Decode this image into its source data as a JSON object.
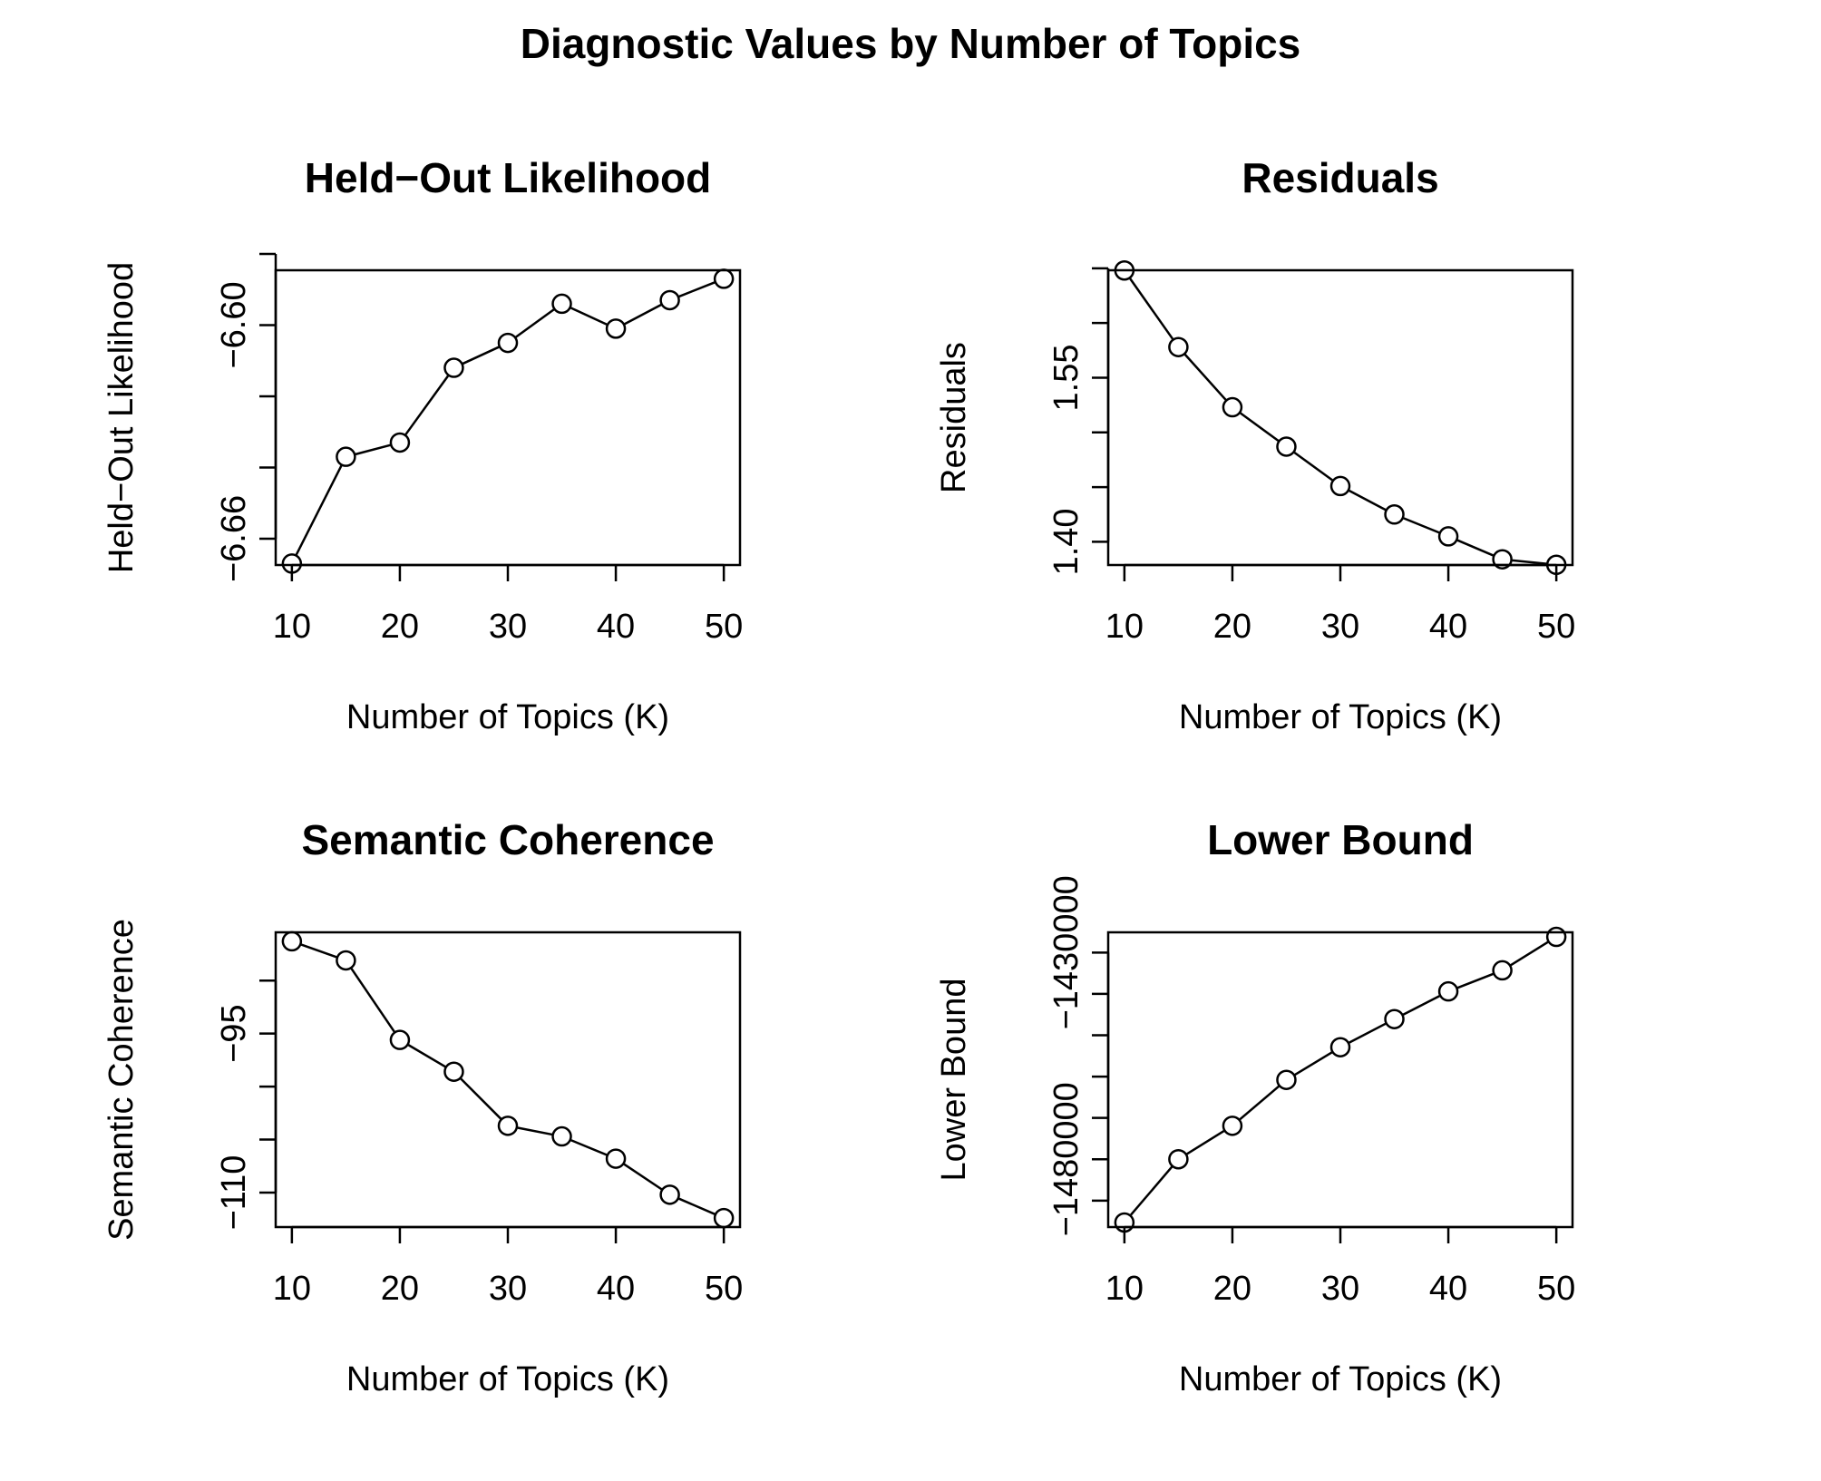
{
  "title": "Diagnostic Values by Number of Topics",
  "chart_data": [
    {
      "type": "line",
      "title": "Held−Out Likelihood",
      "xlabel": "Number of Topics (K)",
      "ylabel": "Held−Out Likelihood",
      "x": [
        10,
        15,
        20,
        25,
        30,
        35,
        40,
        45,
        50
      ],
      "series": [
        {
          "values": [
            -6.667,
            -6.637,
            -6.633,
            -6.612,
            -6.605,
            -6.594,
            -6.601,
            -6.593,
            -6.587
          ]
        }
      ],
      "xlim": [
        8.5,
        51.5
      ],
      "ylim": [
        -6.6674,
        -6.5846
      ],
      "xticks": [
        10,
        20,
        30,
        40,
        50
      ],
      "xtick_labels": [
        "10",
        "20",
        "30",
        "40",
        "50"
      ],
      "yticks": [
        -6.66,
        -6.64,
        -6.62,
        -6.6,
        -6.58
      ],
      "ytick_labels": [
        "−6.66",
        "",
        "",
        "−6.60",
        ""
      ],
      "marker": "open-circle",
      "grid": false,
      "legend": false
    },
    {
      "type": "line",
      "title": "Residuals",
      "xlabel": "Number of Topics (K)",
      "ylabel": "Residuals",
      "x": [
        10,
        15,
        20,
        25,
        30,
        35,
        40,
        45,
        50
      ],
      "series": [
        {
          "values": [
            1.648,
            1.578,
            1.523,
            1.487,
            1.451,
            1.425,
            1.405,
            1.384,
            1.379
          ]
        }
      ],
      "xlim": [
        8.5,
        51.5
      ],
      "ylim": [
        1.3788,
        1.6482
      ],
      "xticks": [
        10,
        20,
        30,
        40,
        50
      ],
      "xtick_labels": [
        "10",
        "20",
        "30",
        "40",
        "50"
      ],
      "yticks": [
        1.4,
        1.45,
        1.5,
        1.55,
        1.6,
        1.65
      ],
      "ytick_labels": [
        "1.40",
        "",
        "",
        "1.55",
        "",
        ""
      ],
      "marker": "open-circle",
      "grid": false,
      "legend": false
    },
    {
      "type": "line",
      "title": "Semantic Coherence",
      "xlabel": "Number of Topics (K)",
      "ylabel": "Semantic Coherence",
      "x": [
        10,
        15,
        20,
        25,
        30,
        35,
        40,
        45,
        50
      ],
      "series": [
        {
          "values": [
            -86.3,
            -88.1,
            -95.6,
            -98.6,
            -103.7,
            -104.7,
            -106.8,
            -110.2,
            -112.4
          ]
        }
      ],
      "xlim": [
        8.5,
        51.5
      ],
      "ylim": [
        -113.25,
        -85.45
      ],
      "xticks": [
        10,
        20,
        30,
        40,
        50
      ],
      "xtick_labels": [
        "10",
        "20",
        "30",
        "40",
        "50"
      ],
      "yticks": [
        -110,
        -105,
        -100,
        -95,
        -90
      ],
      "ytick_labels": [
        "−110",
        "",
        "",
        "−95",
        ""
      ],
      "marker": "open-circle",
      "grid": false,
      "legend": false
    },
    {
      "type": "line",
      "title": "Lower Bound",
      "xlabel": "Number of Topics (K)",
      "ylabel": "Lower Bound",
      "x": [
        10,
        15,
        20,
        25,
        30,
        35,
        40,
        45,
        50
      ],
      "series": [
        {
          "values": [
            -1495300,
            -1480000,
            -1471900,
            -1460800,
            -1452900,
            -1446100,
            -1439400,
            -1434300,
            -1426200
          ]
        }
      ],
      "xlim": [
        8.5,
        51.5
      ],
      "ylim": [
        -1496400,
        -1425100
      ],
      "xticks": [
        10,
        20,
        30,
        40,
        50
      ],
      "xtick_labels": [
        "10",
        "20",
        "30",
        "40",
        "50"
      ],
      "yticks": [
        -1490000,
        -1480000,
        -1470000,
        -1460000,
        -1450000,
        -1440000,
        -1430000
      ],
      "ytick_labels": [
        "",
        "−1480000",
        "",
        "",
        "",
        "",
        "−1430000"
      ],
      "marker": "open-circle",
      "grid": false,
      "legend": false
    }
  ]
}
